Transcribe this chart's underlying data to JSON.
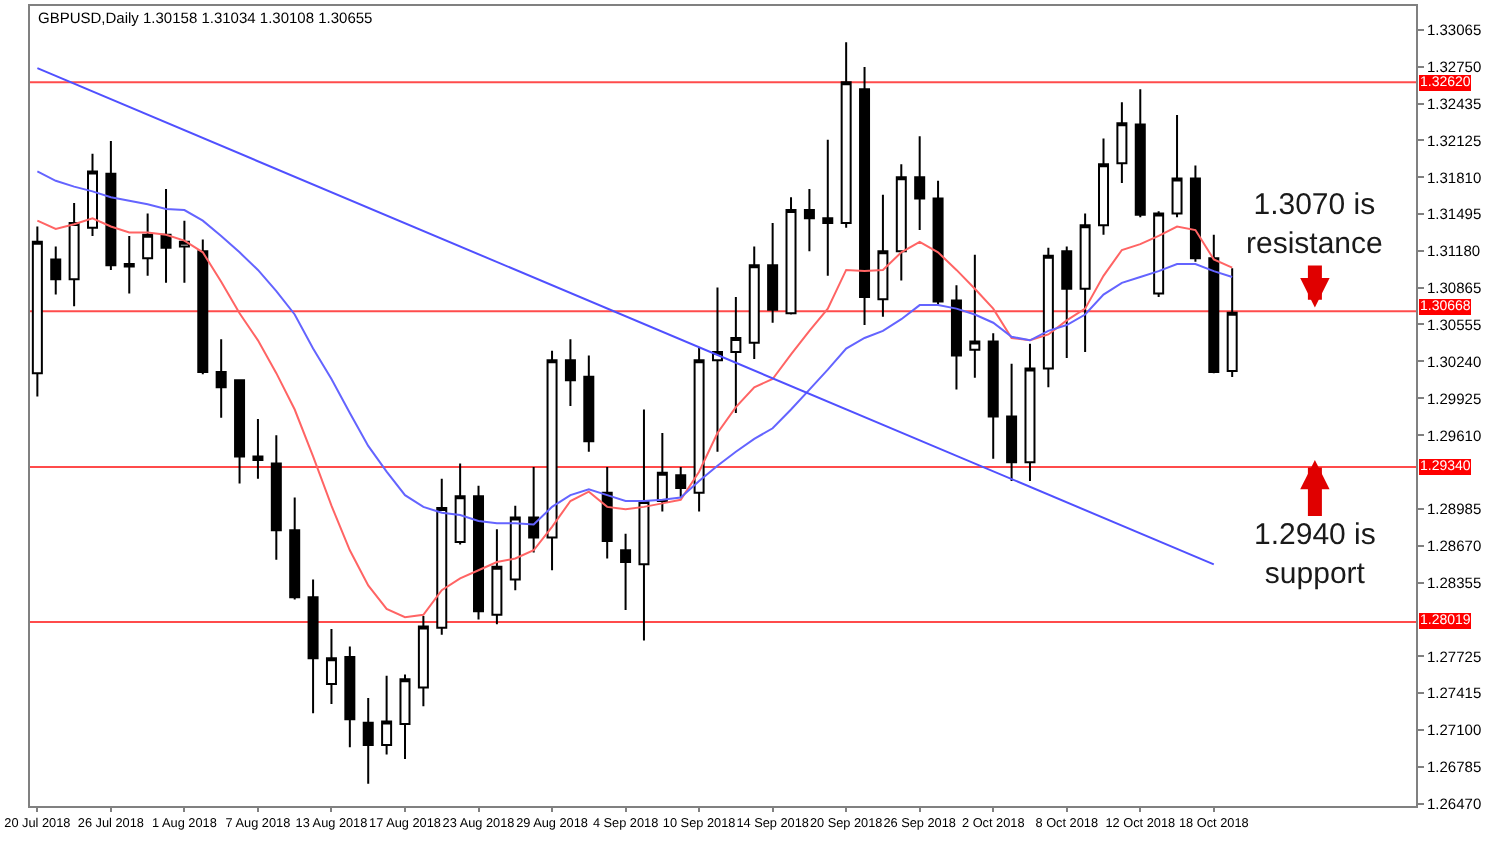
{
  "chart_data": {
    "type": "candlestick",
    "title": "GBPUSD,Daily 1.30158 1.31034 1.30108 1.30655",
    "categories": [
      "20 Jul 2018",
      null,
      null,
      null,
      "26 Jul 2018",
      null,
      null,
      null,
      "1 Aug 2018",
      null,
      null,
      null,
      "7 Aug 2018",
      null,
      null,
      null,
      "13 Aug 2018",
      null,
      null,
      null,
      "17 Aug 2018",
      null,
      null,
      null,
      "23 Aug 2018",
      null,
      null,
      null,
      "29 Aug 2018",
      null,
      null,
      null,
      "4 Sep 2018",
      null,
      null,
      null,
      "10 Sep 2018",
      null,
      null,
      null,
      "14 Sep 2018",
      null,
      null,
      null,
      "20 Sep 2018",
      null,
      null,
      null,
      "26 Sep 2018",
      null,
      null,
      null,
      "2 Oct 2018",
      null,
      null,
      null,
      "8 Oct 2018",
      null,
      null,
      null,
      "12 Oct 2018",
      null,
      null,
      null,
      "18 Oct 2018",
      null
    ],
    "ohlc": [
      [
        1.3014,
        1.3139,
        1.2994,
        1.3126
      ],
      [
        1.3111,
        1.3122,
        1.3081,
        1.3094
      ],
      [
        1.3094,
        1.3159,
        1.3071,
        1.3142
      ],
      [
        1.3138,
        1.3201,
        1.3131,
        1.3186
      ],
      [
        1.3184,
        1.3212,
        1.3102,
        1.3106
      ],
      [
        1.3107,
        1.3131,
        1.3082,
        1.3105
      ],
      [
        1.3112,
        1.315,
        1.3097,
        1.3132
      ],
      [
        1.3132,
        1.3171,
        1.3091,
        1.3121
      ],
      [
        1.3122,
        1.3144,
        1.3091,
        1.3126
      ],
      [
        1.3118,
        1.3128,
        1.3013,
        1.3015
      ],
      [
        1.3015,
        1.3043,
        1.2976,
        1.3002
      ],
      [
        1.3008,
        1.3008,
        1.292,
        1.2943
      ],
      [
        1.2943,
        1.2975,
        1.2924,
        1.294
      ],
      [
        1.2937,
        1.2961,
        1.2855,
        1.288
      ],
      [
        1.288,
        1.2908,
        1.2821,
        1.2823
      ],
      [
        1.2823,
        1.2838,
        1.2724,
        1.2771
      ],
      [
        1.2749,
        1.2796,
        1.2732,
        1.2771
      ],
      [
        1.2772,
        1.2781,
        1.2695,
        1.2719
      ],
      [
        1.2716,
        1.2737,
        1.2664,
        1.2697
      ],
      [
        1.2697,
        1.2756,
        1.2689,
        1.2717
      ],
      [
        1.2715,
        1.2757,
        1.2685,
        1.2753
      ],
      [
        1.2746,
        1.2807,
        1.273,
        1.2798
      ],
      [
        1.2797,
        1.2924,
        1.2791,
        1.2899
      ],
      [
        1.287,
        1.2937,
        1.2868,
        1.2909
      ],
      [
        1.2909,
        1.2918,
        1.2804,
        1.2811
      ],
      [
        1.2808,
        1.2881,
        1.28,
        1.2849
      ],
      [
        1.2838,
        1.2901,
        1.2829,
        1.2891
      ],
      [
        1.2891,
        1.2934,
        1.2861,
        1.2874
      ],
      [
        1.2874,
        1.3033,
        1.2846,
        1.3025
      ],
      [
        1.3025,
        1.3043,
        1.2986,
        1.3008
      ],
      [
        1.3011,
        1.3029,
        1.2947,
        1.2956
      ],
      [
        1.2912,
        1.2934,
        1.2856,
        1.2871
      ],
      [
        1.2863,
        1.2877,
        1.2812,
        1.2853
      ],
      [
        1.2851,
        1.2983,
        1.2786,
        1.2905
      ],
      [
        1.2905,
        1.2963,
        1.2896,
        1.2929
      ],
      [
        1.2927,
        1.2934,
        1.2908,
        1.2916
      ],
      [
        1.2912,
        1.3036,
        1.2896,
        1.3025
      ],
      [
        1.3025,
        1.3087,
        1.2947,
        1.3032
      ],
      [
        1.3032,
        1.3079,
        1.298,
        1.3044
      ],
      [
        1.304,
        1.3122,
        1.3026,
        1.3106
      ],
      [
        1.3106,
        1.3142,
        1.3057,
        1.3068
      ],
      [
        1.3065,
        1.3164,
        1.3064,
        1.3153
      ],
      [
        1.3153,
        1.3171,
        1.3118,
        1.3146
      ],
      [
        1.3146,
        1.3213,
        1.3097,
        1.3142
      ],
      [
        1.3142,
        1.3296,
        1.3138,
        1.3262
      ],
      [
        1.3256,
        1.3275,
        1.3055,
        1.3079
      ],
      [
        1.3077,
        1.3166,
        1.3062,
        1.3118
      ],
      [
        1.3118,
        1.3192,
        1.3093,
        1.3181
      ],
      [
        1.3181,
        1.3216,
        1.3136,
        1.3163
      ],
      [
        1.3163,
        1.3178,
        1.3072,
        1.3075
      ],
      [
        1.3076,
        1.3089,
        1.3,
        1.3029
      ],
      [
        1.3034,
        1.3115,
        1.301,
        1.3041
      ],
      [
        1.3041,
        1.3048,
        1.2941,
        1.2977
      ],
      [
        1.2977,
        1.3022,
        1.2922,
        1.2938
      ],
      [
        1.2938,
        1.3039,
        1.2922,
        1.3018
      ],
      [
        1.3018,
        1.3121,
        1.3002,
        1.3114
      ],
      [
        1.3118,
        1.3122,
        1.3027,
        1.3086
      ],
      [
        1.3086,
        1.315,
        1.3032,
        1.314
      ],
      [
        1.314,
        1.3214,
        1.3132,
        1.3192
      ],
      [
        1.3193,
        1.3245,
        1.3176,
        1.3227
      ],
      [
        1.3226,
        1.3256,
        1.3147,
        1.3149
      ],
      [
        1.3082,
        1.3152,
        1.3079,
        1.315
      ],
      [
        1.315,
        1.3234,
        1.3147,
        1.318
      ],
      [
        1.318,
        1.3191,
        1.3109,
        1.3112
      ],
      [
        1.3112,
        1.3132,
        1.3014,
        1.3015
      ],
      [
        1.30158,
        1.31034,
        1.30108,
        1.30655
      ]
    ],
    "series": [
      {
        "type": "line",
        "color": "#ff6464",
        "values": [
          1.3144,
          1.3137,
          1.3141,
          1.3146,
          1.3139,
          1.3134,
          1.3134,
          1.3132,
          1.3127,
          1.3117,
          1.3092,
          1.3065,
          1.3042,
          1.3014,
          1.2983,
          1.2943,
          1.2901,
          1.2863,
          1.2833,
          1.2813,
          1.2806,
          1.2808,
          1.2829,
          1.2839,
          1.2846,
          1.2853,
          1.2856,
          1.2863,
          1.2883,
          1.2905,
          1.2913,
          1.29,
          1.2898,
          1.29,
          1.2903,
          1.2906,
          1.293,
          1.2963,
          1.2985,
          1.3002,
          1.3009,
          1.303,
          1.305,
          1.3069,
          1.3102,
          1.3101,
          1.3102,
          1.3117,
          1.3126,
          1.3117,
          1.3102,
          1.3086,
          1.3069,
          1.3044,
          1.3042,
          1.3047,
          1.3059,
          1.3069,
          1.3097,
          1.3119,
          1.3124,
          1.3131,
          1.3139,
          1.3136,
          1.3111,
          1.3104
        ]
      },
      {
        "type": "line",
        "color": "#6464ff",
        "values": [
          1.3186,
          1.3178,
          1.3173,
          1.3169,
          1.3164,
          1.3161,
          1.3158,
          1.3154,
          1.3153,
          1.3144,
          1.3131,
          1.3117,
          1.3102,
          1.3084,
          1.3064,
          1.3035,
          1.3009,
          1.298,
          1.2952,
          1.293,
          1.291,
          1.29,
          1.2895,
          1.2893,
          1.2888,
          1.2886,
          1.2886,
          1.2885,
          1.29,
          1.291,
          1.2915,
          1.291,
          1.2905,
          1.2905,
          1.2906,
          1.2908,
          1.2922,
          1.2935,
          1.2947,
          1.2958,
          1.2967,
          1.2983,
          1.3,
          1.3017,
          1.3035,
          1.3044,
          1.305,
          1.306,
          1.3072,
          1.3072,
          1.3069,
          1.3064,
          1.3057,
          1.3045,
          1.3042,
          1.305,
          1.3055,
          1.3064,
          1.3081,
          1.3091,
          1.3096,
          1.3101,
          1.3107,
          1.3107,
          1.3101,
          1.3096
        ]
      },
      {
        "type": "line",
        "color": "#5050ff",
        "x": [
          "20 Jul 2018",
          "18 Oct 2018"
        ],
        "values": [
          1.3274,
          1.2851
        ]
      }
    ],
    "ylim": [
      1.2645,
      1.3327
    ],
    "yticks": [
      1.33065,
      {
        "value": 1.3275,
        "label": "1.32750"
      },
      1.32435,
      1.32125,
      {
        "value": 1.3181,
        "label": "1.31810"
      },
      1.31495,
      {
        "value": 1.3118,
        "label": "1.31180"
      },
      1.30865,
      1.30555,
      {
        "value": 1.3024,
        "label": "1.30240"
      },
      1.29925,
      {
        "value": 1.2961,
        "label": "1.29610"
      },
      1.28985,
      {
        "value": 1.2867,
        "label": "1.28670"
      },
      1.28355,
      1.27725,
      1.27415,
      {
        "value": 1.271,
        "label": "1.27100"
      },
      1.26785,
      {
        "value": 1.2647,
        "label": "1.26470"
      }
    ],
    "ref_lines": [
      {
        "axis": "y",
        "value": 1.3262,
        "label": "1.32620",
        "color": "#ff0000"
      },
      {
        "axis": "y",
        "value": 1.30668,
        "label": "1.30668",
        "color": "#ff0000"
      },
      {
        "axis": "y",
        "value": 1.2934,
        "label": "1.29340",
        "color": "#ff0000"
      },
      {
        "axis": "y",
        "value": 1.28019,
        "label": "1.28019",
        "color": "#ff0000"
      }
    ],
    "annotations": [
      {
        "text": "1.3070 is\nresistance",
        "y": 1.307
      },
      {
        "text": "1.2940 is\nsupport",
        "y": 1.294
      }
    ]
  }
}
